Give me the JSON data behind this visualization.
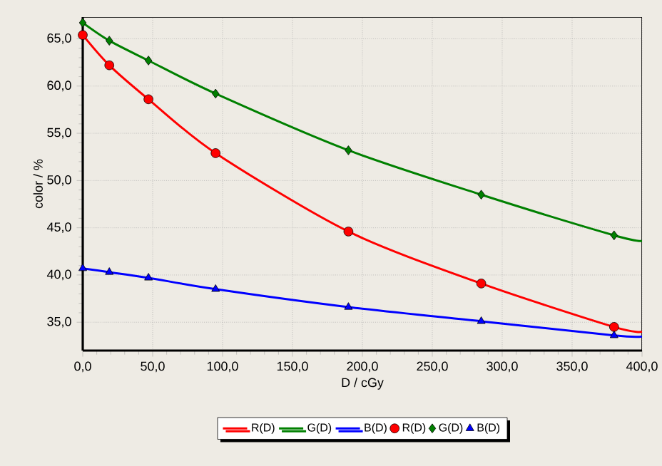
{
  "chart_data": {
    "type": "line",
    "xlabel": "D / cGy",
    "ylabel": "color / %",
    "xlim": [
      0,
      400
    ],
    "ylim": [
      32,
      67.3
    ],
    "xticks": [
      {
        "value": 0,
        "label": "0,0"
      },
      {
        "value": 50,
        "label": "50,0"
      },
      {
        "value": 100,
        "label": "100,0"
      },
      {
        "value": 150,
        "label": "150,0"
      },
      {
        "value": 200,
        "label": "200,0"
      },
      {
        "value": 250,
        "label": "250,0"
      },
      {
        "value": 300,
        "label": "300,0"
      },
      {
        "value": 350,
        "label": "350,0"
      },
      {
        "value": 400,
        "label": "400,0"
      }
    ],
    "yticks": [
      {
        "value": 35,
        "label": "35,0"
      },
      {
        "value": 40,
        "label": "40,0"
      },
      {
        "value": 45,
        "label": "45,0"
      },
      {
        "value": 50,
        "label": "50,0"
      },
      {
        "value": 55,
        "label": "55,0"
      },
      {
        "value": 60,
        "label": "60,0"
      },
      {
        "value": 65,
        "label": "65,0"
      }
    ],
    "grid": true,
    "legend": "bottom",
    "series": [
      {
        "name": "R(D)",
        "color": "#ff0000",
        "x": [
          0,
          19,
          47,
          95,
          190,
          285,
          380,
          400
        ],
        "values": [
          65.4,
          62.2,
          58.6,
          52.9,
          44.6,
          39.1,
          34.5,
          34.0
        ]
      },
      {
        "name": "G(D)",
        "color": "#008000",
        "x": [
          0,
          19,
          47,
          95,
          190,
          285,
          380,
          400
        ],
        "values": [
          66.7,
          64.8,
          62.7,
          59.2,
          53.2,
          48.5,
          44.2,
          43.6
        ]
      },
      {
        "name": "B(D)",
        "color": "#0000ff",
        "x": [
          0,
          19,
          47,
          95,
          190,
          285,
          380,
          400
        ],
        "values": [
          40.7,
          40.3,
          39.7,
          38.5,
          36.6,
          35.1,
          33.6,
          33.5
        ]
      },
      {
        "name": "R(D)",
        "type": "scatter",
        "marker": "circle",
        "color": "#ff0000",
        "x": [
          0,
          19,
          47,
          95,
          190,
          285,
          380
        ],
        "values": [
          65.4,
          62.2,
          58.6,
          52.9,
          44.6,
          39.1,
          34.5
        ]
      },
      {
        "name": "G(D)",
        "type": "scatter",
        "marker": "diamond",
        "color": "#008000",
        "x": [
          0,
          19,
          47,
          95,
          190,
          285,
          380
        ],
        "values": [
          66.7,
          64.8,
          62.7,
          59.2,
          53.2,
          48.5,
          44.2
        ]
      },
      {
        "name": "B(D)",
        "type": "scatter",
        "marker": "triangle",
        "color": "#0000ff",
        "x": [
          0,
          19,
          47,
          95,
          190,
          285,
          380
        ],
        "values": [
          40.7,
          40.3,
          39.7,
          38.5,
          36.6,
          35.1,
          33.6
        ]
      }
    ]
  }
}
